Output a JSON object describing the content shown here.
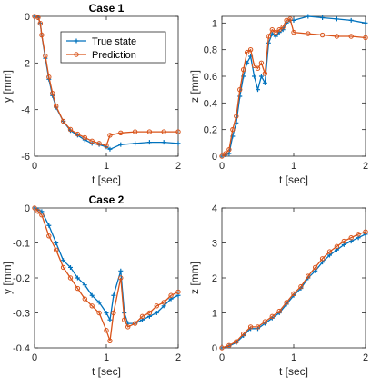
{
  "colors": {
    "true_state": "#0072BD",
    "prediction": "#D95319",
    "axis": "#262626"
  },
  "legend": {
    "entries": [
      "True state",
      "Prediction"
    ],
    "placement": "top-right",
    "panel": 0
  },
  "chart_data": [
    {
      "type": "line",
      "title": "Case 1",
      "xlabel": "t [sec]",
      "ylabel": "y [mm]",
      "xlim": [
        0,
        2
      ],
      "ylim": [
        -6,
        0
      ],
      "xticks": [
        "0",
        "1",
        "2"
      ],
      "yticks": [
        "-6",
        "-4",
        "-2",
        "0"
      ],
      "series": [
        {
          "name": "True state",
          "x": [
            0,
            0.05,
            0.08,
            0.1,
            0.15,
            0.2,
            0.25,
            0.3,
            0.4,
            0.5,
            0.6,
            0.7,
            0.8,
            0.9,
            1.0,
            1.05,
            1.2,
            1.4,
            1.6,
            1.8,
            2.0
          ],
          "y": [
            0,
            -0.05,
            -0.3,
            -0.8,
            -1.8,
            -2.7,
            -3.4,
            -3.9,
            -4.5,
            -4.9,
            -5.1,
            -5.3,
            -5.45,
            -5.5,
            -5.6,
            -5.7,
            -5.5,
            -5.45,
            -5.4,
            -5.4,
            -5.45
          ]
        },
        {
          "name": "Prediction",
          "x": [
            0,
            0.05,
            0.08,
            0.1,
            0.15,
            0.2,
            0.25,
            0.3,
            0.4,
            0.5,
            0.6,
            0.7,
            0.8,
            0.9,
            1.0,
            1.05,
            1.2,
            1.4,
            1.6,
            1.8,
            2.0
          ],
          "y": [
            0,
            -0.05,
            -0.3,
            -0.8,
            -1.7,
            -2.6,
            -3.3,
            -3.85,
            -4.5,
            -4.85,
            -5.05,
            -5.2,
            -5.35,
            -5.45,
            -5.55,
            -5.1,
            -5.0,
            -4.95,
            -4.95,
            -4.95,
            -4.95
          ]
        }
      ]
    },
    {
      "type": "line",
      "title": "",
      "xlabel": "t [sec]",
      "ylabel": "z [mm]",
      "xlim": [
        0,
        2
      ],
      "ylim": [
        0,
        1.05
      ],
      "xticks": [
        "0",
        "1",
        "2"
      ],
      "yticks": [
        "0",
        "0.2",
        "0.4",
        "0.6",
        "0.8",
        "1"
      ],
      "series": [
        {
          "name": "True state",
          "x": [
            0,
            0.05,
            0.1,
            0.15,
            0.2,
            0.25,
            0.3,
            0.35,
            0.4,
            0.45,
            0.5,
            0.55,
            0.6,
            0.65,
            0.7,
            0.75,
            0.8,
            0.85,
            0.9,
            0.95,
            1.0,
            1.2,
            1.4,
            1.6,
            1.8,
            2.0
          ],
          "y": [
            0,
            0.01,
            0.02,
            0.15,
            0.25,
            0.45,
            0.6,
            0.7,
            0.75,
            0.6,
            0.5,
            0.6,
            0.55,
            0.85,
            0.92,
            0.9,
            0.93,
            0.95,
            1.0,
            1.02,
            1.02,
            1.05,
            1.04,
            1.03,
            1.02,
            1.0
          ]
        },
        {
          "name": "Prediction",
          "x": [
            0,
            0.05,
            0.1,
            0.15,
            0.2,
            0.25,
            0.3,
            0.35,
            0.4,
            0.45,
            0.5,
            0.55,
            0.6,
            0.65,
            0.7,
            0.75,
            0.8,
            0.85,
            0.9,
            0.95,
            1.0,
            1.2,
            1.4,
            1.6,
            1.8,
            2.0
          ],
          "y": [
            0,
            0.02,
            0.05,
            0.2,
            0.3,
            0.5,
            0.65,
            0.78,
            0.8,
            0.68,
            0.66,
            0.7,
            0.62,
            0.9,
            0.95,
            0.93,
            0.95,
            0.97,
            1.02,
            1.03,
            0.93,
            0.92,
            0.91,
            0.9,
            0.9,
            0.89
          ]
        }
      ]
    },
    {
      "type": "line",
      "title": "Case 2",
      "xlabel": "t [sec]",
      "ylabel": "y [mm]",
      "xlim": [
        0,
        2
      ],
      "ylim": [
        -0.4,
        0
      ],
      "xticks": [
        "0",
        "1",
        "2"
      ],
      "yticks": [
        "-0.4",
        "-0.3",
        "-0.2",
        "-0.1",
        "0"
      ],
      "series": [
        {
          "name": "True state",
          "x": [
            0,
            0.05,
            0.1,
            0.2,
            0.3,
            0.4,
            0.5,
            0.6,
            0.7,
            0.8,
            0.9,
            1.0,
            1.05,
            1.1,
            1.2,
            1.25,
            1.3,
            1.4,
            1.5,
            1.6,
            1.7,
            1.8,
            1.9,
            2.0
          ],
          "y": [
            0,
            -0.005,
            -0.01,
            -0.05,
            -0.1,
            -0.15,
            -0.17,
            -0.2,
            -0.22,
            -0.25,
            -0.27,
            -0.3,
            -0.32,
            -0.25,
            -0.18,
            -0.3,
            -0.33,
            -0.33,
            -0.32,
            -0.31,
            -0.3,
            -0.28,
            -0.26,
            -0.25
          ]
        },
        {
          "name": "Prediction",
          "x": [
            0,
            0.05,
            0.1,
            0.2,
            0.3,
            0.4,
            0.5,
            0.6,
            0.7,
            0.8,
            0.9,
            1.0,
            1.05,
            1.1,
            1.2,
            1.25,
            1.3,
            1.4,
            1.5,
            1.6,
            1.7,
            1.8,
            1.9,
            2.0
          ],
          "y": [
            0,
            -0.01,
            -0.02,
            -0.08,
            -0.12,
            -0.17,
            -0.2,
            -0.23,
            -0.26,
            -0.28,
            -0.3,
            -0.35,
            -0.38,
            -0.3,
            -0.2,
            -0.32,
            -0.34,
            -0.33,
            -0.31,
            -0.3,
            -0.28,
            -0.27,
            -0.25,
            -0.24
          ]
        }
      ]
    },
    {
      "type": "line",
      "title": "",
      "xlabel": "t [sec]",
      "ylabel": "z [mm]",
      "xlim": [
        0,
        2
      ],
      "ylim": [
        0,
        4
      ],
      "xticks": [
        "0",
        "1",
        "2"
      ],
      "yticks": [
        "0",
        "1",
        "2",
        "3",
        "4"
      ],
      "series": [
        {
          "name": "True state",
          "x": [
            0,
            0.1,
            0.2,
            0.3,
            0.4,
            0.5,
            0.6,
            0.7,
            0.8,
            0.9,
            1.0,
            1.1,
            1.2,
            1.3,
            1.4,
            1.5,
            1.6,
            1.7,
            1.8,
            1.9,
            2.0
          ],
          "y": [
            0,
            0.05,
            0.15,
            0.35,
            0.55,
            0.55,
            0.7,
            0.85,
            1.0,
            1.25,
            1.5,
            1.7,
            2.0,
            2.2,
            2.45,
            2.65,
            2.8,
            2.95,
            3.05,
            3.15,
            3.25
          ]
        },
        {
          "name": "Prediction",
          "x": [
            0,
            0.1,
            0.2,
            0.3,
            0.4,
            0.5,
            0.6,
            0.7,
            0.8,
            0.9,
            1.0,
            1.1,
            1.2,
            1.3,
            1.4,
            1.5,
            1.6,
            1.7,
            1.8,
            1.9,
            2.0
          ],
          "y": [
            0,
            0.07,
            0.18,
            0.4,
            0.6,
            0.6,
            0.75,
            0.9,
            1.05,
            1.3,
            1.55,
            1.75,
            2.05,
            2.3,
            2.55,
            2.75,
            2.9,
            3.05,
            3.15,
            3.25,
            3.32
          ]
        }
      ]
    }
  ]
}
